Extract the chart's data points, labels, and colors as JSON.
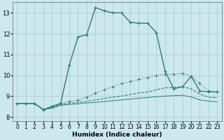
{
  "background_color": "#cce8ee",
  "grid_color": "#aacdd6",
  "line_color": "#2e7d72",
  "xlabel": "Humidex (Indice chaleur)",
  "xlim": [
    -0.5,
    23.5
  ],
  "ylim": [
    7.8,
    13.5
  ],
  "yticks": [
    8,
    9,
    10,
    11,
    12,
    13
  ],
  "xticks": [
    0,
    1,
    2,
    3,
    4,
    5,
    6,
    7,
    8,
    9,
    10,
    11,
    12,
    13,
    14,
    15,
    16,
    17,
    18,
    19,
    20,
    21,
    22,
    23
  ],
  "line1_x": [
    0,
    1,
    2,
    3,
    4,
    5,
    6,
    7,
    8,
    9,
    10,
    11,
    12,
    13,
    14,
    15,
    16,
    17,
    18,
    19,
    20,
    21,
    22,
    23
  ],
  "line1_y": [
    8.65,
    8.65,
    8.65,
    8.35,
    8.5,
    8.65,
    10.5,
    11.85,
    11.95,
    13.25,
    13.1,
    13.0,
    13.0,
    12.55,
    12.5,
    12.5,
    12.05,
    10.2,
    9.35,
    9.45,
    9.95,
    9.25,
    9.2,
    9.2
  ],
  "line2_x": [
    0,
    1,
    2,
    3,
    4,
    5,
    6,
    7,
    8,
    9,
    10,
    11,
    12,
    13,
    14,
    15,
    16,
    17,
    18,
    19,
    20,
    21,
    22,
    23
  ],
  "line2_y": [
    8.65,
    8.65,
    8.65,
    8.35,
    8.5,
    8.65,
    8.75,
    8.8,
    8.95,
    9.15,
    9.3,
    9.45,
    9.6,
    9.7,
    9.8,
    9.9,
    10.0,
    10.05,
    10.05,
    10.1,
    9.95,
    9.6,
    9.25,
    9.2
  ],
  "line3_x": [
    0,
    1,
    2,
    3,
    4,
    5,
    6,
    7,
    8,
    9,
    10,
    11,
    12,
    13,
    14,
    15,
    16,
    17,
    18,
    19,
    20,
    21,
    22,
    23
  ],
  "line3_y": [
    8.65,
    8.65,
    8.65,
    8.35,
    8.45,
    8.6,
    8.65,
    8.7,
    8.75,
    8.82,
    8.88,
    8.95,
    9.0,
    9.08,
    9.15,
    9.2,
    9.3,
    9.4,
    9.42,
    9.45,
    9.35,
    9.1,
    8.95,
    8.92
  ],
  "line4_x": [
    0,
    1,
    2,
    3,
    4,
    5,
    6,
    7,
    8,
    9,
    10,
    11,
    12,
    13,
    14,
    15,
    16,
    17,
    18,
    19,
    20,
    21,
    22,
    23
  ],
  "line4_y": [
    8.65,
    8.65,
    8.65,
    8.35,
    8.42,
    8.55,
    8.6,
    8.63,
    8.67,
    8.7,
    8.74,
    8.78,
    8.82,
    8.86,
    8.9,
    8.93,
    8.97,
    9.0,
    9.02,
    9.04,
    8.96,
    8.82,
    8.76,
    8.72
  ]
}
